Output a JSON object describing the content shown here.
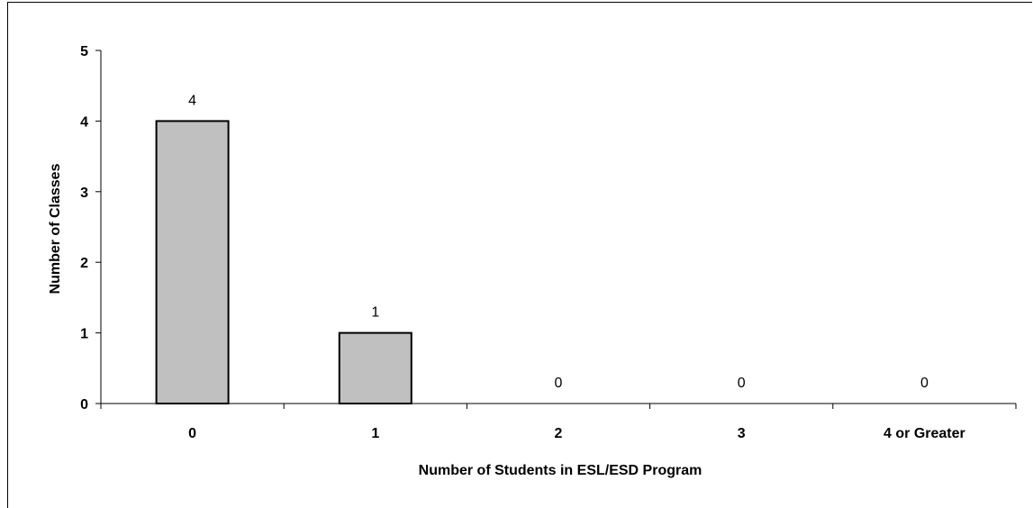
{
  "chart_data": {
    "type": "bar",
    "title": "",
    "categories": [
      "0",
      "1",
      "2",
      "3",
      "4 or Greater"
    ],
    "values": [
      4,
      1,
      0,
      0,
      0
    ],
    "data_labels": [
      "4",
      "1",
      "0",
      "0",
      "0"
    ],
    "xlabel": "Number of Students in ESL/ESD Program",
    "ylabel": "Number of Classes",
    "ylim": [
      0,
      5
    ],
    "yticks": [
      "0",
      "1",
      "2",
      "3",
      "4",
      "5"
    ],
    "grid": false,
    "legend": "none",
    "bar_color": "#c0c0c0",
    "bar_border_color": "#000000"
  }
}
